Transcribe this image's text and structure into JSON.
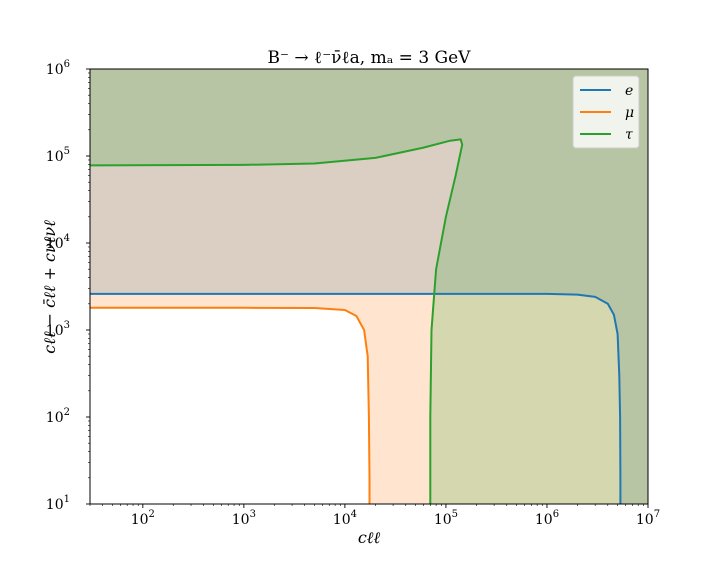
{
  "chart_data": {
    "type": "line",
    "title": "B⁻ → ℓ⁻ν̄ℓa, mₐ = 3 GeV",
    "xlabel": "cℓℓ",
    "ylabel": "cℓℓ − c̄ℓℓ + cνℓνℓ",
    "xscale": "log",
    "yscale": "log",
    "xlim": [
      30,
      10000000
    ],
    "ylim": [
      10,
      1000000
    ],
    "x_ticks": [
      {
        "value": 100,
        "base": "10",
        "exp": "2"
      },
      {
        "value": 1000,
        "base": "10",
        "exp": "3"
      },
      {
        "value": 10000,
        "base": "10",
        "exp": "4"
      },
      {
        "value": 100000,
        "base": "10",
        "exp": "5"
      },
      {
        "value": 1000000,
        "base": "10",
        "exp": "6"
      },
      {
        "value": 10000000,
        "base": "10",
        "exp": "7"
      }
    ],
    "y_ticks": [
      {
        "value": 10,
        "base": "10",
        "exp": "1"
      },
      {
        "value": 100,
        "base": "10",
        "exp": "2"
      },
      {
        "value": 1000,
        "base": "10",
        "exp": "3"
      },
      {
        "value": 10000,
        "base": "10",
        "exp": "4"
      },
      {
        "value": 100000,
        "base": "10",
        "exp": "5"
      },
      {
        "value": 1000000,
        "base": "10",
        "exp": "6"
      }
    ],
    "grid": false,
    "legend_position": "top-right",
    "series": [
      {
        "name": "e",
        "color": "#1f77b4",
        "fill": "#1f77b4",
        "x": [
          30,
          1000,
          100000,
          1000000,
          2000000,
          3000000,
          4000000,
          4600000,
          5000000,
          5200000,
          5300000,
          5330000,
          5330000
        ],
        "y": [
          2600,
          2600,
          2600,
          2600,
          2550,
          2400,
          2000,
          1500,
          900,
          300,
          100,
          20,
          10
        ]
      },
      {
        "name": "μ",
        "color": "#ff7f0e",
        "fill": "#ff7f0e",
        "x": [
          30,
          1000,
          5000,
          10000,
          13000,
          15500,
          16800,
          17300,
          17500,
          17500
        ],
        "y": [
          1800,
          1800,
          1790,
          1700,
          1450,
          1000,
          500,
          100,
          20,
          10
        ]
      },
      {
        "name": "τ",
        "color": "#2ca02c",
        "fill": "#2ca02c",
        "x": [
          30,
          1000,
          5000,
          20000,
          60000,
          110000,
          140000,
          145000,
          125000,
          100000,
          80000,
          72000,
          70000,
          70000
        ],
        "y": [
          78000,
          79000,
          82000,
          95000,
          125000,
          150000,
          155000,
          135000,
          60000,
          20000,
          5000,
          1000,
          100,
          10
        ]
      }
    ]
  }
}
